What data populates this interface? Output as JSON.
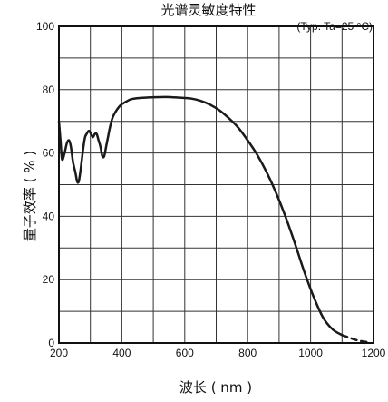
{
  "chart_data": {
    "type": "line",
    "title": "光谱灵敏度特性",
    "conditions": "(Typ. Ta=25 °C)",
    "xlabel": "波长 ( nm )",
    "ylabel": "量子效率 ( % )",
    "xlim": [
      200,
      1200
    ],
    "ylim": [
      0,
      100
    ],
    "x_ticks": [
      "200",
      "400",
      "600",
      "800",
      "1000",
      "1200"
    ],
    "y_ticks": [
      "0",
      "20",
      "40",
      "60",
      "80",
      "100"
    ],
    "grid": true,
    "legend": "none",
    "line_color": "#1a1a1a",
    "series": [
      {
        "values": [
          [
            200,
            70
          ],
          [
            205,
            64
          ],
          [
            210,
            58
          ],
          [
            218,
            60
          ],
          [
            225,
            63
          ],
          [
            232,
            64
          ],
          [
            238,
            62
          ],
          [
            245,
            57
          ],
          [
            252,
            54
          ],
          [
            258,
            51
          ],
          [
            263,
            51
          ],
          [
            268,
            54
          ],
          [
            273,
            58
          ],
          [
            278,
            62
          ],
          [
            283,
            65
          ],
          [
            288,
            66
          ],
          [
            295,
            67
          ],
          [
            302,
            66
          ],
          [
            308,
            65
          ],
          [
            314,
            66
          ],
          [
            320,
            66
          ],
          [
            326,
            64
          ],
          [
            332,
            62
          ],
          [
            338,
            59
          ],
          [
            344,
            59
          ],
          [
            350,
            62
          ],
          [
            356,
            65
          ],
          [
            362,
            68
          ],
          [
            370,
            71
          ],
          [
            380,
            73
          ],
          [
            395,
            75
          ],
          [
            410,
            76
          ],
          [
            430,
            77
          ],
          [
            460,
            77.4
          ],
          [
            500,
            77.6
          ],
          [
            540,
            77.7
          ],
          [
            580,
            77.5
          ],
          [
            620,
            77.2
          ],
          [
            650,
            76.5
          ],
          [
            680,
            75.3
          ],
          [
            710,
            73.5
          ],
          [
            740,
            71
          ],
          [
            770,
            68
          ],
          [
            800,
            64
          ],
          [
            830,
            59.5
          ],
          [
            860,
            54
          ],
          [
            890,
            47.5
          ],
          [
            920,
            40
          ],
          [
            950,
            31.5
          ],
          [
            980,
            22.5
          ],
          [
            1010,
            14.5
          ],
          [
            1040,
            8
          ],
          [
            1070,
            4.3
          ],
          [
            1100,
            2.5
          ]
        ]
      },
      {
        "style": "dashed",
        "values": [
          [
            1100,
            2.5
          ],
          [
            1120,
            1.8
          ],
          [
            1140,
            1.1
          ],
          [
            1160,
            0.6
          ],
          [
            1180,
            0.3
          ]
        ]
      }
    ]
  }
}
